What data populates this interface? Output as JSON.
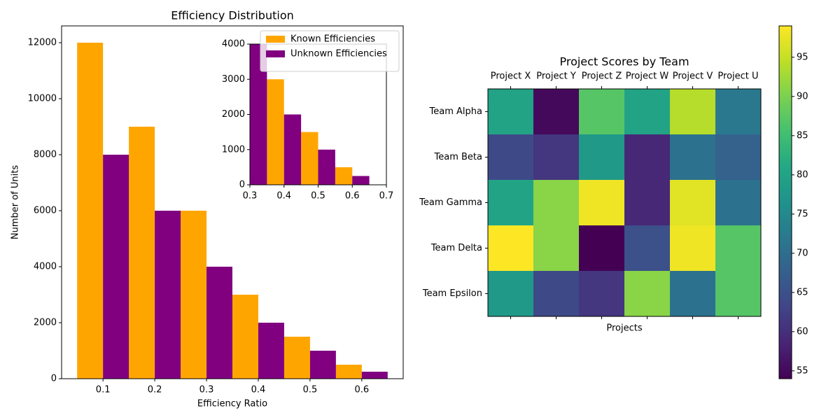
{
  "chart_data": [
    {
      "type": "bar",
      "title": "Efficiency Distribution",
      "xlabel": "Efficiency Ratio",
      "ylabel": "Number of Units",
      "x": [
        0.1,
        0.2,
        0.3,
        0.4,
        0.5,
        0.6
      ],
      "series": [
        {
          "name": "Known Efficiencies",
          "color": "#ffa500",
          "values": [
            12000,
            9000,
            6000,
            3000,
            1500,
            500
          ]
        },
        {
          "name": "Unknown Efficiencies",
          "color": "#800080",
          "values": [
            8000,
            6000,
            4000,
            2000,
            1000,
            250
          ]
        }
      ],
      "xlim": [
        0.02,
        0.68
      ],
      "ylim": [
        0,
        12600
      ],
      "xticks": [
        0.1,
        0.2,
        0.3,
        0.4,
        0.5,
        0.6
      ],
      "yticks": [
        0,
        2000,
        4000,
        6000,
        8000,
        10000,
        12000
      ],
      "legend": "upper right",
      "inset": {
        "xlim": [
          0.3,
          0.7
        ],
        "ylim": [
          0,
          4000
        ],
        "xticks": [
          0.3,
          0.4,
          0.5,
          0.6,
          0.7
        ],
        "yticks": [
          0,
          1000,
          2000,
          3000,
          4000
        ]
      }
    },
    {
      "type": "heatmap",
      "title": "Project Scores by Team",
      "xlabel": "Projects",
      "columns": [
        "Project X",
        "Project Y",
        "Project Z",
        "Project W",
        "Project V",
        "Project U"
      ],
      "rows": [
        "Team Alpha",
        "Team Beta",
        "Team Gamma",
        "Team Delta",
        "Team Epsilon"
      ],
      "values": [
        [
          80,
          55,
          87,
          80,
          94,
          72
        ],
        [
          64,
          61,
          78,
          59,
          71,
          68
        ],
        [
          80,
          91,
          98,
          59,
          97,
          71
        ],
        [
          99,
          91,
          54,
          65,
          98,
          87
        ],
        [
          78,
          64,
          61,
          91,
          71,
          87
        ]
      ],
      "colormap": "viridis",
      "clim": [
        54,
        99
      ],
      "colorbar_ticks": [
        55,
        60,
        65,
        70,
        75,
        80,
        85,
        90,
        95
      ]
    }
  ]
}
